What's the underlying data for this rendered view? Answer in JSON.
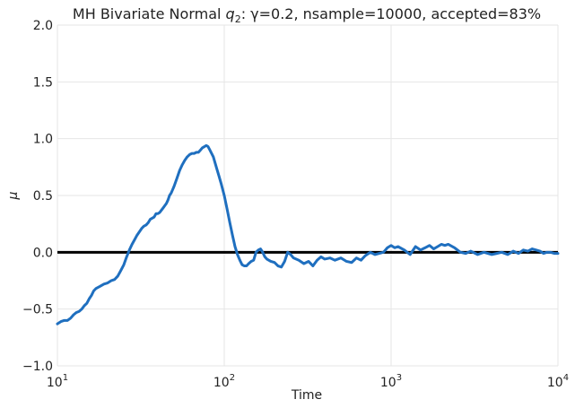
{
  "chart_data": {
    "type": "line",
    "title": {
      "prefix": "MH Bivariate Normal ",
      "q_var": "q",
      "q_sub": "2",
      "suffix": ": γ=0.2, nsample=10000, accepted=83%"
    },
    "xlabel": "Time",
    "ylabel": "μ",
    "x_scale": "log",
    "xlim": [
      10,
      10000
    ],
    "ylim": [
      -1.0,
      2.0
    ],
    "grid": true,
    "x_ticks": [
      {
        "value": 10,
        "base": "10",
        "exp": "1"
      },
      {
        "value": 100,
        "base": "10",
        "exp": "2"
      },
      {
        "value": 1000,
        "base": "10",
        "exp": "3"
      },
      {
        "value": 10000,
        "base": "10",
        "exp": "4"
      }
    ],
    "y_ticks": [
      {
        "value": 2.0,
        "label": "2.0"
      },
      {
        "value": 1.5,
        "label": "1.5"
      },
      {
        "value": 1.0,
        "label": "1.0"
      },
      {
        "value": 0.5,
        "label": "0.5"
      },
      {
        "value": 0.0,
        "label": "0.0"
      },
      {
        "value": -0.5,
        "label": "−0.5"
      },
      {
        "value": -1.0,
        "label": "−1.0"
      }
    ],
    "reference_line": {
      "y": 0.0,
      "color": "#000000"
    },
    "series": [
      {
        "color": "#1f6fbf",
        "points": [
          [
            10,
            -0.63
          ],
          [
            10.5,
            -0.61
          ],
          [
            11.0,
            -0.6
          ],
          [
            11.5,
            -0.6
          ],
          [
            12.0,
            -0.58
          ],
          [
            12.5,
            -0.55
          ],
          [
            13.0,
            -0.53
          ],
          [
            13.5,
            -0.52
          ],
          [
            14.0,
            -0.5
          ],
          [
            14.5,
            -0.47
          ],
          [
            15.0,
            -0.45
          ],
          [
            15.5,
            -0.41
          ],
          [
            16.0,
            -0.38
          ],
          [
            16.5,
            -0.34
          ],
          [
            17.0,
            -0.32
          ],
          [
            18.0,
            -0.3
          ],
          [
            19.0,
            -0.28
          ],
          [
            20.0,
            -0.27
          ],
          [
            21.0,
            -0.25
          ],
          [
            22.0,
            -0.24
          ],
          [
            23.0,
            -0.21
          ],
          [
            24.0,
            -0.16
          ],
          [
            25.0,
            -0.11
          ],
          [
            26.0,
            -0.04
          ],
          [
            27.0,
            0.02
          ],
          [
            28.0,
            0.07
          ],
          [
            29.0,
            0.11
          ],
          [
            30.0,
            0.15
          ],
          [
            31.0,
            0.18
          ],
          [
            32.0,
            0.21
          ],
          [
            33.0,
            0.23
          ],
          [
            34.0,
            0.24
          ],
          [
            35.0,
            0.26
          ],
          [
            36.0,
            0.29
          ],
          [
            37.0,
            0.3
          ],
          [
            38.0,
            0.31
          ],
          [
            39.0,
            0.34
          ],
          [
            40.0,
            0.34
          ],
          [
            41.0,
            0.35
          ],
          [
            42.0,
            0.37
          ],
          [
            43.0,
            0.39
          ],
          [
            44.0,
            0.41
          ],
          [
            45.0,
            0.43
          ],
          [
            46.0,
            0.46
          ],
          [
            47.0,
            0.5
          ],
          [
            48.0,
            0.52
          ],
          [
            49.0,
            0.55
          ],
          [
            50.0,
            0.58
          ],
          [
            52.0,
            0.65
          ],
          [
            54.0,
            0.72
          ],
          [
            56.0,
            0.77
          ],
          [
            58.0,
            0.81
          ],
          [
            60.0,
            0.84
          ],
          [
            62.0,
            0.86
          ],
          [
            64.0,
            0.87
          ],
          [
            66.0,
            0.87
          ],
          [
            68.0,
            0.88
          ],
          [
            70.0,
            0.88
          ],
          [
            72.0,
            0.9
          ],
          [
            74.0,
            0.92
          ],
          [
            76.0,
            0.93
          ],
          [
            78.0,
            0.94
          ],
          [
            80.0,
            0.93
          ],
          [
            82.0,
            0.9
          ],
          [
            84.0,
            0.87
          ],
          [
            86.0,
            0.84
          ],
          [
            88.0,
            0.79
          ],
          [
            90.0,
            0.74
          ],
          [
            93.0,
            0.67
          ],
          [
            96.0,
            0.6
          ],
          [
            100.0,
            0.5
          ],
          [
            104.0,
            0.38
          ],
          [
            108.0,
            0.26
          ],
          [
            112.0,
            0.15
          ],
          [
            116.0,
            0.05
          ],
          [
            120.0,
            -0.02
          ],
          [
            124.0,
            -0.07
          ],
          [
            128.0,
            -0.11
          ],
          [
            132.0,
            -0.12
          ],
          [
            136.0,
            -0.12
          ],
          [
            140.0,
            -0.1
          ],
          [
            145.0,
            -0.08
          ],
          [
            150.0,
            -0.07
          ],
          [
            155.0,
            0.0
          ],
          [
            160.0,
            0.02
          ],
          [
            165.0,
            0.03
          ],
          [
            170.0,
            0.0
          ],
          [
            175.0,
            -0.04
          ],
          [
            180.0,
            -0.06
          ],
          [
            190.0,
            -0.08
          ],
          [
            200.0,
            -0.09
          ],
          [
            210.0,
            -0.12
          ],
          [
            220.0,
            -0.13
          ],
          [
            230.0,
            -0.08
          ],
          [
            240.0,
            0.0
          ],
          [
            250.0,
            -0.02
          ],
          [
            260.0,
            -0.05
          ],
          [
            280.0,
            -0.07
          ],
          [
            300.0,
            -0.1
          ],
          [
            320.0,
            -0.08
          ],
          [
            340.0,
            -0.12
          ],
          [
            360.0,
            -0.07
          ],
          [
            380.0,
            -0.04
          ],
          [
            400.0,
            -0.06
          ],
          [
            430.0,
            -0.05
          ],
          [
            460.0,
            -0.07
          ],
          [
            500.0,
            -0.05
          ],
          [
            540.0,
            -0.08
          ],
          [
            580.0,
            -0.09
          ],
          [
            620.0,
            -0.05
          ],
          [
            660.0,
            -0.07
          ],
          [
            700.0,
            -0.03
          ],
          [
            750.0,
            0.0
          ],
          [
            800.0,
            -0.02
          ],
          [
            850.0,
            -0.01
          ],
          [
            900.0,
            0.0
          ],
          [
            950.0,
            0.04
          ],
          [
            1000.0,
            0.06
          ],
          [
            1050.0,
            0.04
          ],
          [
            1100.0,
            0.05
          ],
          [
            1200.0,
            0.02
          ],
          [
            1300.0,
            -0.02
          ],
          [
            1400.0,
            0.05
          ],
          [
            1500.0,
            0.02
          ],
          [
            1600.0,
            0.04
          ],
          [
            1700.0,
            0.06
          ],
          [
            1800.0,
            0.03
          ],
          [
            1900.0,
            0.05
          ],
          [
            2000.0,
            0.07
          ],
          [
            2100.0,
            0.06
          ],
          [
            2200.0,
            0.07
          ],
          [
            2400.0,
            0.04
          ],
          [
            2600.0,
            0.0
          ],
          [
            2800.0,
            -0.01
          ],
          [
            3000.0,
            0.01
          ],
          [
            3300.0,
            -0.02
          ],
          [
            3600.0,
            0.0
          ],
          [
            4000.0,
            -0.02
          ],
          [
            4300.0,
            -0.01
          ],
          [
            4600.0,
            0.0
          ],
          [
            5000.0,
            -0.02
          ],
          [
            5400.0,
            0.01
          ],
          [
            5800.0,
            -0.01
          ],
          [
            6200.0,
            0.02
          ],
          [
            6600.0,
            0.01
          ],
          [
            7000.0,
            0.03
          ],
          [
            7400.0,
            0.02
          ],
          [
            7800.0,
            0.01
          ],
          [
            8200.0,
            -0.01
          ],
          [
            8600.0,
            0.0
          ],
          [
            9000.0,
            0.0
          ],
          [
            9500.0,
            -0.01
          ],
          [
            10000.0,
            -0.01
          ]
        ]
      }
    ]
  }
}
